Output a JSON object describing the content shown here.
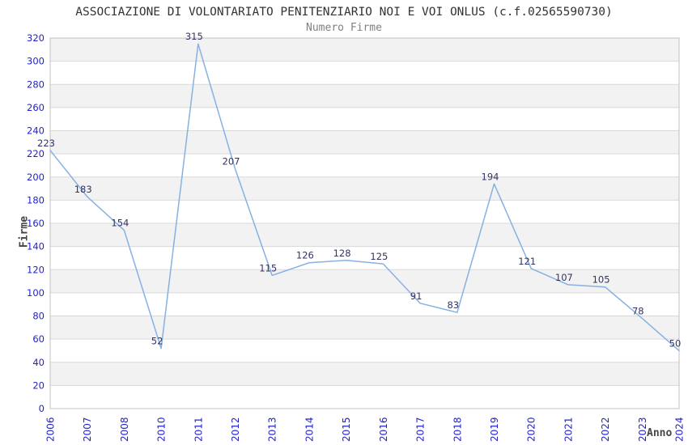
{
  "header": {
    "title": "ASSOCIAZIONE DI VOLONTARIATO PENITENZIARIO NOI E VOI ONLUS (c.f.02565590730)",
    "subtitle": "Numero Firme"
  },
  "chart_data": {
    "type": "line",
    "title": "ASSOCIAZIONE DI VOLONTARIATO PENITENZIARIO NOI E VOI ONLUS (c.f.02565590730)",
    "subtitle": "Numero Firme",
    "xlabel": "Anno",
    "ylabel": "Firme",
    "categories": [
      "2006",
      "2007",
      "2008",
      "2010",
      "2011",
      "2012",
      "2013",
      "2014",
      "2015",
      "2016",
      "2017",
      "2018",
      "2019",
      "2020",
      "2021",
      "2022",
      "2023",
      "2024"
    ],
    "values": [
      223,
      183,
      154,
      52,
      315,
      207,
      115,
      126,
      128,
      125,
      91,
      83,
      194,
      121,
      107,
      105,
      78,
      50
    ],
    "ylim": [
      0,
      320
    ],
    "ytick_step": 20,
    "grid": true,
    "banded_background": true,
    "legend_position": "none",
    "data_labels_visible": true,
    "colors": {
      "line": "#85b1e3",
      "tick_label": "#2222cc",
      "data_label": "#333366",
      "band_fill": "#f2f2f2",
      "gridline": "#d9d9d9",
      "plot_border": "#c0c0c0",
      "title": "#333333",
      "subtitle": "#808080",
      "axis_title": "#444444"
    }
  }
}
